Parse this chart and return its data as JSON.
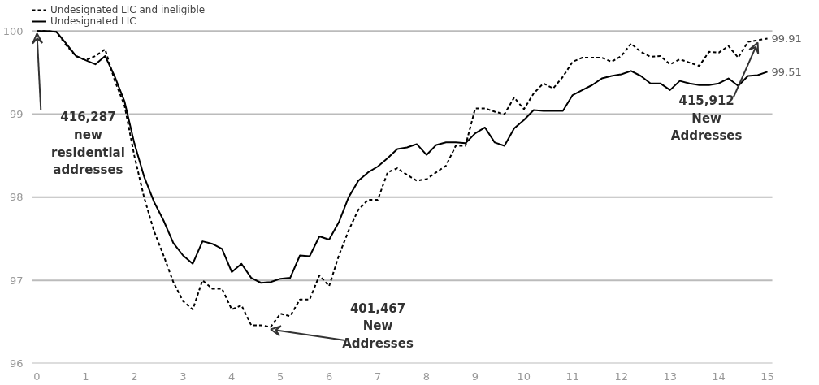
{
  "chart_data": {
    "type": "line",
    "x": [
      0,
      0.2,
      0.4,
      0.6,
      0.8,
      1.0,
      1.2,
      1.4,
      1.6,
      1.8,
      2.0,
      2.2,
      2.4,
      2.6,
      2.8,
      3.0,
      3.2,
      3.4,
      3.6,
      3.8,
      4.0,
      4.2,
      4.4,
      4.6,
      4.8,
      5.0,
      5.2,
      5.4,
      5.6,
      5.8,
      6.0,
      6.2,
      6.4,
      6.6,
      6.8,
      7.0,
      7.2,
      7.4,
      7.6,
      7.8,
      8.0,
      8.2,
      8.4,
      8.6,
      8.8,
      9.0,
      9.2,
      9.4,
      9.6,
      9.8,
      10.0,
      10.2,
      10.4,
      10.6,
      10.8,
      11.0,
      11.2,
      11.4,
      11.6,
      11.8,
      12.0,
      12.2,
      12.4,
      12.6,
      12.8,
      13.0,
      13.2,
      13.4,
      13.6,
      13.8,
      14.0,
      14.2,
      14.4,
      14.6,
      14.8,
      15.0
    ],
    "series": [
      {
        "name": "Undesignated LIC and ineligible",
        "color": "#000000",
        "line_style": "dashed",
        "values": [
          100,
          100,
          99.99,
          99.83,
          99.7,
          99.65,
          99.7,
          99.78,
          99.4,
          99.1,
          98.5,
          98.0,
          97.6,
          97.3,
          96.98,
          96.75,
          96.65,
          97.0,
          96.9,
          96.9,
          96.65,
          96.7,
          96.46,
          96.46,
          96.44,
          96.6,
          96.57,
          96.77,
          96.77,
          97.06,
          96.93,
          97.3,
          97.6,
          97.85,
          97.97,
          97.97,
          98.3,
          98.35,
          98.27,
          98.2,
          98.22,
          98.3,
          98.38,
          98.62,
          98.62,
          99.07,
          99.07,
          99.03,
          99.0,
          99.2,
          99.06,
          99.25,
          99.37,
          99.31,
          99.45,
          99.63,
          99.68,
          99.68,
          99.68,
          99.63,
          99.7,
          99.85,
          99.75,
          99.69,
          99.7,
          99.6,
          99.66,
          99.62,
          99.58,
          99.75,
          99.74,
          99.82,
          99.68,
          99.87,
          99.89,
          99.91
        ],
        "value_labels": [
          null,
          null,
          null,
          null,
          null,
          null,
          null,
          null,
          null,
          null,
          null,
          null,
          null,
          null,
          null,
          null,
          null,
          null,
          null,
          null,
          null,
          null,
          null,
          null,
          null,
          null,
          null,
          null,
          null,
          null,
          null,
          null,
          null,
          null,
          null,
          null,
          null,
          null,
          null,
          null,
          null,
          null,
          null,
          null,
          null,
          null,
          null,
          null,
          null,
          null,
          null,
          null,
          null,
          null,
          null,
          null,
          null,
          null,
          null,
          null,
          null,
          null,
          null,
          null,
          null,
          null,
          null,
          null,
          null,
          null,
          null,
          null,
          null,
          null,
          null,
          "99.91"
        ]
      },
      {
        "name": "Undesignated LIC",
        "color": "#000000",
        "line_style": "solid",
        "values": [
          100,
          100,
          99.99,
          99.85,
          99.7,
          99.65,
          99.6,
          99.7,
          99.45,
          99.15,
          98.65,
          98.25,
          97.95,
          97.72,
          97.45,
          97.3,
          97.2,
          97.47,
          97.44,
          97.38,
          97.1,
          97.2,
          97.03,
          96.97,
          96.98,
          97.02,
          97.03,
          97.3,
          97.29,
          97.53,
          97.49,
          97.7,
          98.0,
          98.2,
          98.3,
          98.37,
          98.47,
          98.58,
          98.6,
          98.64,
          98.51,
          98.63,
          98.66,
          98.66,
          98.65,
          98.77,
          98.84,
          98.66,
          98.62,
          98.83,
          98.93,
          99.05,
          99.04,
          99.04,
          99.04,
          99.23,
          99.29,
          99.35,
          99.43,
          99.46,
          99.48,
          99.52,
          99.46,
          99.37,
          99.37,
          99.29,
          99.4,
          99.37,
          99.35,
          99.35,
          99.37,
          99.43,
          99.34,
          99.46,
          99.47,
          99.51
        ],
        "value_labels": [
          null,
          null,
          null,
          null,
          null,
          null,
          null,
          null,
          null,
          null,
          null,
          null,
          null,
          null,
          null,
          null,
          null,
          null,
          null,
          null,
          null,
          null,
          null,
          null,
          null,
          null,
          null,
          null,
          null,
          null,
          null,
          null,
          null,
          null,
          null,
          null,
          null,
          null,
          null,
          null,
          null,
          null,
          null,
          null,
          null,
          null,
          null,
          null,
          null,
          null,
          null,
          null,
          null,
          null,
          null,
          null,
          null,
          null,
          null,
          null,
          null,
          null,
          null,
          null,
          null,
          null,
          null,
          null,
          null,
          null,
          null,
          null,
          null,
          null,
          null,
          "99.51"
        ]
      }
    ],
    "xlim": [
      -0.1,
      15.1
    ],
    "xticks": [
      0,
      1,
      2,
      3,
      4,
      5,
      6,
      7,
      8,
      9,
      10,
      11,
      12,
      13,
      14,
      15
    ],
    "ylim": [
      96,
      100
    ],
    "yticks": [
      96,
      97,
      98,
      99,
      100
    ],
    "grid": "y",
    "legend": "top left",
    "marker": "none",
    "annotations": [
      {
        "text": "416,287\nnew\nresidential\naddresses",
        "x": 0,
        "y": 100
      },
      {
        "text": "401,467\nNew\nAddresses",
        "x": 4.8,
        "y": 96.44
      },
      {
        "text": "415,912\nNew\nAddresses",
        "x": 14.8,
        "y": 99.89
      }
    ]
  }
}
